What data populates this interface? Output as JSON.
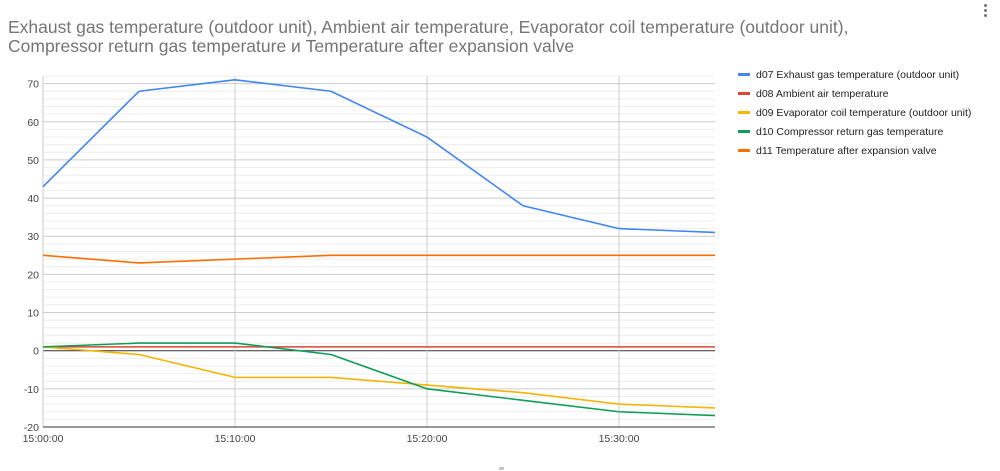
{
  "menu": {
    "icon": "more-vert-icon"
  },
  "chart_data": {
    "type": "line",
    "title_lines": [
      "Exhaust gas temperature (outdoor unit), Ambient air temperature, Evaporator coil temperature (outdoor unit),",
      "Compressor return gas temperature и Temperature after expansion valve"
    ],
    "xlabel": "",
    "ylabel": "",
    "x_minutes": [
      0,
      5,
      10,
      15,
      20,
      25,
      30,
      35
    ],
    "xlim": [
      0,
      35
    ],
    "xticks": [
      {
        "value": 0,
        "label": "15:00:00"
      },
      {
        "value": 10,
        "label": "15:10:00"
      },
      {
        "value": 20,
        "label": "15:20:00"
      },
      {
        "value": 30,
        "label": "15:30:00"
      }
    ],
    "ylim": [
      -20,
      72
    ],
    "yticks": [
      70,
      60,
      50,
      40,
      30,
      20,
      10,
      0,
      -10,
      -20
    ],
    "minor_gridlines": true,
    "legend_position": "right",
    "series": [
      {
        "name": "d07 Exhaust gas temperature (outdoor unit)",
        "color": "#4285f4",
        "values": [
          43,
          68,
          71,
          68,
          56,
          38,
          32,
          31
        ]
      },
      {
        "name": "d08 Ambient air temperature",
        "color": "#db4437",
        "values": [
          1,
          1,
          1,
          1,
          1,
          1,
          1,
          1
        ]
      },
      {
        "name": "d09 Evaporator coil temperature (outdoor unit)",
        "color": "#f4b400",
        "values": [
          1,
          -1,
          -7,
          -7,
          -9,
          -11,
          -14,
          -15
        ]
      },
      {
        "name": "d10 Compressor return gas temperature",
        "color": "#0f9d58",
        "values": [
          1,
          2,
          2,
          -1,
          -10,
          -13,
          -16,
          -17
        ]
      },
      {
        "name": "d11 Temperature after expansion valve",
        "color": "#ff6d00",
        "values": [
          25,
          23,
          24,
          25,
          25,
          25,
          25,
          25
        ]
      }
    ]
  }
}
